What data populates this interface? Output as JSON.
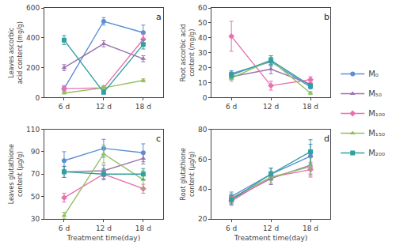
{
  "chart_data": [
    {
      "type": "line",
      "label": "a",
      "ylabel": "Leaves ascorbic acid content (mg/g)",
      "x": [
        6,
        12,
        18
      ],
      "xlim": [
        3,
        21
      ],
      "xticks": [
        {
          "value": 6,
          "label": "6 d"
        },
        {
          "value": 12,
          "label": "12 d"
        },
        {
          "value": 18,
          "label": "18 d"
        }
      ],
      "ylim": [
        0,
        600
      ],
      "yticks": [
        0,
        200,
        400,
        600
      ],
      "grid": false,
      "legend": "right",
      "series": [
        {
          "name": "M₀",
          "color": "#5b8fd4",
          "marker": "circle",
          "values": [
            60,
            510,
            435
          ],
          "errors": [
            20,
            25,
            50
          ]
        },
        {
          "name": "M₅₀",
          "color": "#9b72b0",
          "marker": "triangle-up",
          "values": [
            200,
            360,
            260
          ],
          "errors": [
            20,
            20,
            20
          ]
        },
        {
          "name": "M₁₀₀",
          "color": "#e870b0",
          "marker": "diamond",
          "values": [
            60,
            65,
            390
          ],
          "errors": [
            15,
            15,
            35
          ]
        },
        {
          "name": "M₁₅₀",
          "color": "#90c060",
          "marker": "triangle-up",
          "values": [
            30,
            65,
            115
          ],
          "errors": [
            5,
            8,
            10
          ]
        },
        {
          "name": "M₂₀₀",
          "color": "#30a0a0",
          "marker": "square",
          "values": [
            385,
            35,
            355
          ],
          "errors": [
            30,
            10,
            30
          ]
        }
      ]
    },
    {
      "type": "line",
      "label": "b",
      "ylabel": "Root ascorbic acid content (mg/g)",
      "x": [
        6,
        12,
        18
      ],
      "xlim": [
        3,
        21
      ],
      "xticks": [
        {
          "value": 6,
          "label": "6 d"
        },
        {
          "value": 12,
          "label": "12 d"
        },
        {
          "value": 18,
          "label": "18 d"
        }
      ],
      "ylim": [
        0,
        60
      ],
      "yticks": [
        0,
        10,
        20,
        30,
        40,
        50,
        60
      ],
      "grid": false,
      "series": [
        {
          "name": "M₀",
          "color": "#5b8fd4",
          "marker": "circle",
          "values": [
            16,
            24,
            7
          ],
          "errors": [
            2,
            3,
            1
          ]
        },
        {
          "name": "M₅₀",
          "color": "#9b72b0",
          "marker": "triangle-up",
          "values": [
            14,
            19,
            9
          ],
          "errors": [
            2,
            3,
            2
          ]
        },
        {
          "name": "M₁₀₀",
          "color": "#e870b0",
          "marker": "diamond",
          "values": [
            41,
            8,
            12
          ],
          "errors": [
            10,
            3,
            2
          ]
        },
        {
          "name": "M₁₅₀",
          "color": "#90c060",
          "marker": "triangle-up",
          "values": [
            13,
            25,
            3
          ],
          "errors": [
            2,
            3,
            1
          ]
        },
        {
          "name": "M₂₀₀",
          "color": "#30a0a0",
          "marker": "square",
          "values": [
            15,
            25,
            8
          ],
          "errors": [
            2,
            3,
            1
          ]
        }
      ]
    },
    {
      "type": "line",
      "label": "c",
      "xlabel": "Treatment time(day)",
      "ylabel": "Leaves glutathione content (μg/g)",
      "x": [
        6,
        12,
        18
      ],
      "xlim": [
        3,
        21
      ],
      "xticks": [
        {
          "value": 6,
          "label": "6 d"
        },
        {
          "value": 12,
          "label": "12 d"
        },
        {
          "value": 18,
          "label": "18 d"
        }
      ],
      "ylim": [
        30,
        110
      ],
      "yticks": [
        30,
        50,
        70,
        90,
        110
      ],
      "grid": false,
      "series": [
        {
          "name": "M₀",
          "color": "#5b8fd4",
          "marker": "circle",
          "values": [
            82,
            93,
            89
          ],
          "errors": [
            8,
            8,
            8
          ]
        },
        {
          "name": "M₅₀",
          "color": "#9b72b0",
          "marker": "triangle-up",
          "values": [
            72,
            73,
            84
          ],
          "errors": [
            5,
            5,
            5
          ]
        },
        {
          "name": "M₁₀₀",
          "color": "#e870b0",
          "marker": "diamond",
          "values": [
            49,
            70,
            57
          ],
          "errors": [
            4,
            4,
            4
          ]
        },
        {
          "name": "M₁₅₀",
          "color": "#90c060",
          "marker": "triangle-up",
          "values": [
            33,
            88,
            65
          ],
          "errors": [
            3,
            8,
            8
          ]
        },
        {
          "name": "M₂₀₀",
          "color": "#30a0a0",
          "marker": "square",
          "values": [
            72,
            70,
            70
          ],
          "errors": [
            5,
            5,
            5
          ]
        }
      ]
    },
    {
      "type": "line",
      "label": "d",
      "xlabel": "Treatment time(day)",
      "ylabel": "Root glutathione content (μg/g)",
      "x": [
        6,
        12,
        18
      ],
      "xlim": [
        3,
        21
      ],
      "xticks": [
        {
          "value": 6,
          "label": "6 d"
        },
        {
          "value": 12,
          "label": "12 d"
        },
        {
          "value": 18,
          "label": "18 d"
        }
      ],
      "ylim": [
        20,
        80
      ],
      "yticks": [
        20,
        40,
        60,
        80
      ],
      "grid": false,
      "series": [
        {
          "name": "M₀",
          "color": "#5b8fd4",
          "marker": "circle",
          "values": [
            35,
            50,
            62
          ],
          "errors": [
            3,
            4,
            8
          ]
        },
        {
          "name": "M₅₀",
          "color": "#9b72b0",
          "marker": "triangle-up",
          "values": [
            33,
            47,
            56
          ],
          "errors": [
            3,
            4,
            6
          ]
        },
        {
          "name": "M₁₀₀",
          "color": "#e870b0",
          "marker": "diamond",
          "values": [
            32,
            48,
            53
          ],
          "errors": [
            3,
            4,
            5
          ]
        },
        {
          "name": "M₁₅₀",
          "color": "#90c060",
          "marker": "triangle-up",
          "values": [
            34,
            48,
            55
          ],
          "errors": [
            3,
            4,
            6
          ]
        },
        {
          "name": "M₂₀₀",
          "color": "#30a0a0",
          "marker": "square",
          "values": [
            33,
            50,
            65
          ],
          "errors": [
            3,
            4,
            8
          ]
        }
      ]
    }
  ]
}
